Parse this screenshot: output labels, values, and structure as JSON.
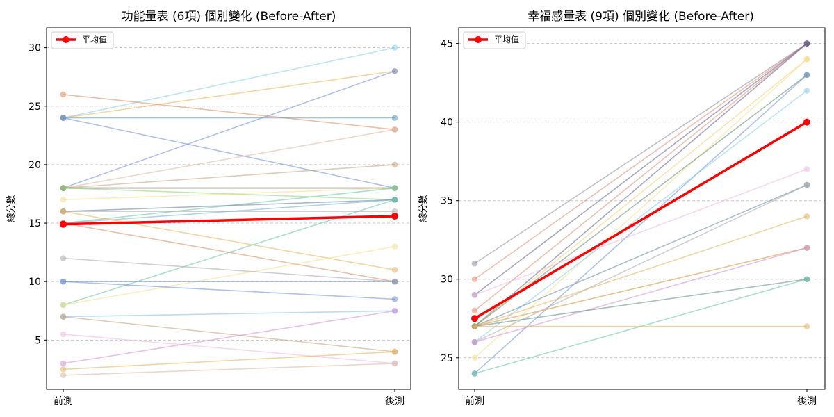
{
  "chart_data": [
    {
      "type": "line",
      "title": "功能量表 (6項) 個別變化 (Before-After)",
      "ylabel": "總分數",
      "xlabel": "",
      "categories": [
        "前測",
        "後測"
      ],
      "ylim": [
        0.8,
        31.7
      ],
      "yticks": [
        5,
        10,
        15,
        20,
        25,
        30
      ],
      "grid": "y-dashed",
      "legend": {
        "label": "平均值",
        "placement": "top-left"
      },
      "mean": {
        "name": "平均值",
        "color": "#ff0000",
        "values": [
          14.9,
          15.6
        ]
      },
      "series": [
        {
          "values": [
            24,
            30
          ],
          "color": "#87ceeb"
        },
        {
          "values": [
            24,
            28
          ],
          "color": "#e6b35a"
        },
        {
          "values": [
            18,
            28
          ],
          "color": "#6f8fd8"
        },
        {
          "values": [
            26,
            23
          ],
          "color": "#d98c5f"
        },
        {
          "values": [
            24,
            24
          ],
          "color": "#5b9bb5"
        },
        {
          "values": [
            24,
            18
          ],
          "color": "#6f8fd8"
        },
        {
          "values": [
            18,
            23
          ],
          "color": "#d9b8a3"
        },
        {
          "values": [
            18,
            20
          ],
          "color": "#c9a07a"
        },
        {
          "values": [
            18,
            18
          ],
          "color": "#e08a6f"
        },
        {
          "values": [
            18,
            18
          ],
          "color": "#d3a0b8"
        },
        {
          "values": [
            18,
            18
          ],
          "color": "#5f8a7a"
        },
        {
          "values": [
            18,
            17
          ],
          "color": "#8ed37a"
        },
        {
          "values": [
            17,
            18
          ],
          "color": "#f5e08a"
        },
        {
          "values": [
            15,
            18
          ],
          "color": "#66c2a5"
        },
        {
          "values": [
            16,
            17
          ],
          "color": "#6a7fa0"
        },
        {
          "values": [
            16,
            16
          ],
          "color": "#aaaaaa"
        },
        {
          "values": [
            15,
            17
          ],
          "color": "#6fb0d0"
        },
        {
          "values": [
            15,
            10
          ],
          "color": "#d98c5f"
        },
        {
          "values": [
            16,
            11
          ],
          "color": "#e6b35a"
        },
        {
          "values": [
            8,
            17
          ],
          "color": "#66c2a5"
        },
        {
          "values": [
            8,
            13
          ],
          "color": "#f5e08a"
        },
        {
          "values": [
            12,
            10
          ],
          "color": "#aaaaaa"
        },
        {
          "values": [
            10,
            10
          ],
          "color": "#7a9bd0"
        },
        {
          "values": [
            10,
            8.5
          ],
          "color": "#6f8fd8"
        },
        {
          "values": [
            7,
            7.5
          ],
          "color": "#87c0e0"
        },
        {
          "values": [
            7,
            4
          ],
          "color": "#c9a07a"
        },
        {
          "values": [
            5.5,
            3
          ],
          "color": "#f0b8e0"
        },
        {
          "values": [
            3,
            7.5
          ],
          "color": "#d38fd3"
        },
        {
          "values": [
            2.5,
            4
          ],
          "color": "#e6b35a"
        },
        {
          "values": [
            2,
            3
          ],
          "color": "#d9b8a3"
        }
      ]
    },
    {
      "type": "line",
      "title": "幸福感量表 (9項) 個別變化 (Before-After)",
      "ylabel": "總分數",
      "xlabel": "",
      "categories": [
        "前測",
        "後測"
      ],
      "ylim": [
        23,
        46
      ],
      "yticks": [
        25,
        30,
        35,
        40,
        45
      ],
      "grid": "y-dashed",
      "legend": {
        "label": "平均值",
        "placement": "top-left"
      },
      "mean": {
        "name": "平均值",
        "color": "#ff0000",
        "values": [
          27.5,
          40
        ]
      },
      "series": [
        {
          "values": [
            31,
            45
          ],
          "color": "#8a8a9a"
        },
        {
          "values": [
            30,
            45
          ],
          "color": "#e08a6f"
        },
        {
          "values": [
            28,
            45
          ],
          "color": "#e08a6f"
        },
        {
          "values": [
            29,
            45
          ],
          "color": "#5f5f8f"
        },
        {
          "values": [
            27,
            45
          ],
          "color": "#5f5f8f"
        },
        {
          "values": [
            27,
            44
          ],
          "color": "#f5d070"
        },
        {
          "values": [
            25,
            44
          ],
          "color": "#f5e08a"
        },
        {
          "values": [
            27,
            43
          ],
          "color": "#5f8a6a"
        },
        {
          "values": [
            24,
            43
          ],
          "color": "#6f8fd8"
        },
        {
          "values": [
            26,
            42
          ],
          "color": "#87ceeb"
        },
        {
          "values": [
            29,
            37
          ],
          "color": "#f0b8e0"
        },
        {
          "values": [
            27,
            36
          ],
          "color": "#6a8aa0"
        },
        {
          "values": [
            26,
            36
          ],
          "color": "#aaaaaa"
        },
        {
          "values": [
            27,
            34
          ],
          "color": "#e6b35a"
        },
        {
          "values": [
            27,
            32
          ],
          "color": "#f5e08a"
        },
        {
          "values": [
            27,
            32
          ],
          "color": "#d9a070"
        },
        {
          "values": [
            26,
            32
          ],
          "color": "#d38fd3"
        },
        {
          "values": [
            27,
            30
          ],
          "color": "#5f8a8a"
        },
        {
          "values": [
            24,
            30
          ],
          "color": "#66c2a5"
        },
        {
          "values": [
            27,
            27
          ],
          "color": "#e6b35a"
        }
      ]
    }
  ]
}
